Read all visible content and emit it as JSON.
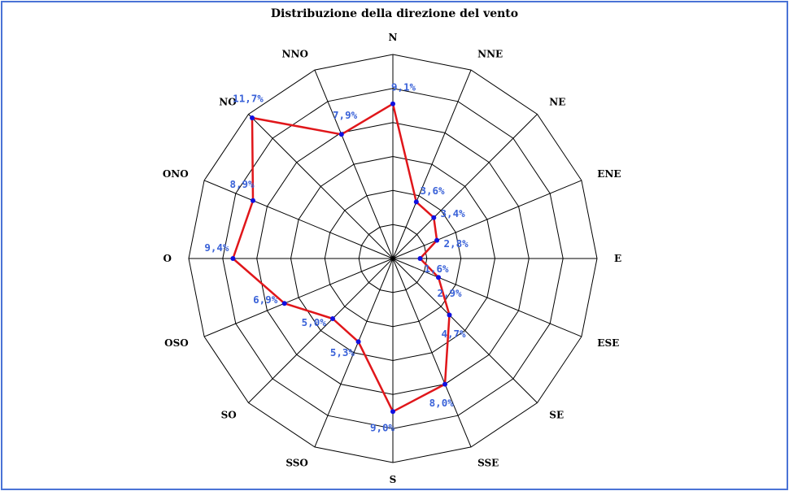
{
  "chart_data": {
    "type": "radar",
    "title": "Distribuzione della direzione del vento",
    "directions": [
      "N",
      "NNE",
      "NE",
      "ENE",
      "E",
      "ESE",
      "SE",
      "SSE",
      "S",
      "SSO",
      "SO",
      "OSO",
      "O",
      "ONO",
      "NO",
      "NNO"
    ],
    "values": [
      9.1,
      3.6,
      3.4,
      2.8,
      1.6,
      2.9,
      4.7,
      8.0,
      9.0,
      5.3,
      5.0,
      6.9,
      9.4,
      8.9,
      11.7,
      7.9
    ],
    "value_labels": [
      "9,1%",
      "3,6%",
      "3,4%",
      "2,8%",
      "1,6%",
      "2,9%",
      "4,7%",
      "8,0%",
      "9,0%",
      "5,3%",
      "5,0%",
      "6,9%",
      "9,4%",
      "8,9%",
      "11,7%",
      "7,9%"
    ],
    "rlim": [
      0,
      12
    ],
    "rings": 6,
    "grid": true,
    "line_color": "#e0161a",
    "point_color": "#1010e0",
    "label_color": "#3a62d8",
    "grid_color": "#000000"
  }
}
